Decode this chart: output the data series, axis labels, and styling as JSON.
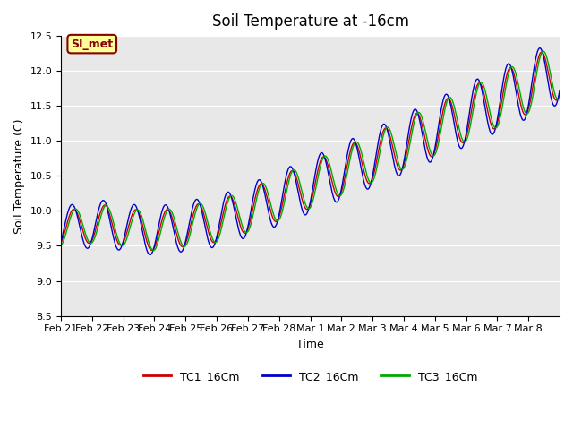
{
  "title": "Soil Temperature at -16cm",
  "xlabel": "Time",
  "ylabel": "Soil Temperature (C)",
  "ylim": [
    8.5,
    12.5
  ],
  "yticks": [
    8.5,
    9.0,
    9.5,
    10.0,
    10.5,
    11.0,
    11.5,
    12.0,
    12.5
  ],
  "bg_color": "#e8e8e8",
  "fig_color": "#ffffff",
  "line_colors": [
    "#cc0000",
    "#0000cc",
    "#00aa00"
  ],
  "line_labels": [
    "TC1_16Cm",
    "TC2_16Cm",
    "TC3_16Cm"
  ],
  "si_met_label": "SI_met",
  "si_met_bg": "#ffff99",
  "si_met_border": "#880000",
  "xtick_positions": [
    0,
    1,
    2,
    3,
    4,
    5,
    6,
    7,
    8,
    9,
    10,
    11,
    12,
    13,
    14,
    15
  ],
  "xtick_labels": [
    "Feb 21",
    "Feb 22",
    "Feb 23",
    "Feb 24",
    "Feb 25",
    "Feb 26",
    "Feb 27",
    "Feb 28",
    "Mar 1",
    "Mar 2",
    "Mar 3",
    "Mar 4",
    "Mar 5",
    "Mar 6",
    "Mar 7",
    "Mar 8"
  ]
}
